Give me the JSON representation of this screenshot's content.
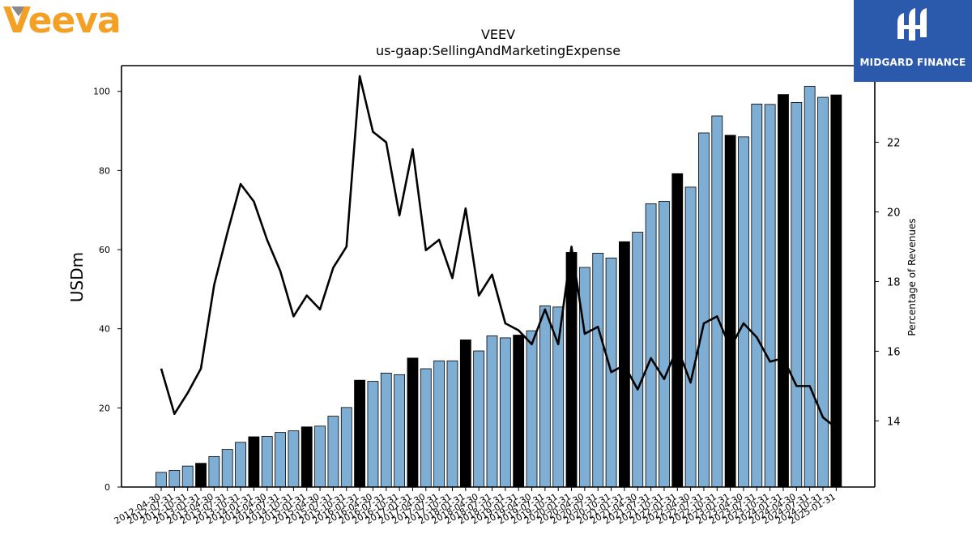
{
  "logos": {
    "company_name": "Veeva",
    "company_color": "#f4a024",
    "brand_name": "MIDGARD FINANCE",
    "brand_bg": "#2b5aad"
  },
  "chart_data": {
    "type": "bar",
    "title": "VEEV",
    "subtitle": "us-gaap:SellingAndMarketingExpense",
    "ylabel": "USDm",
    "y2label": "Percentage of Revenues",
    "ylim": [
      0,
      106.5
    ],
    "y2lim": [
      12.1,
      24.2
    ],
    "yticks": [
      0,
      20,
      40,
      60,
      80,
      100
    ],
    "y2ticks": [
      14,
      16,
      18,
      20,
      22
    ],
    "bar_color": "#7eaed3",
    "highlight_color": "#000000",
    "line_color": "#000000",
    "categories": [
      "2012-04-30",
      "2012-07-31",
      "2012-10-31",
      "2013-01-31",
      "2013-04-30",
      "2013-07-31",
      "2013-10-31",
      "2014-01-31",
      "2014-04-30",
      "2014-07-31",
      "2014-10-31",
      "2015-01-31",
      "2015-04-30",
      "2015-07-31",
      "2015-10-31",
      "2016-01-31",
      "2016-04-30",
      "2016-07-31",
      "2016-10-31",
      "2017-01-31",
      "2017-04-30",
      "2017-07-31",
      "2017-10-31",
      "2018-01-31",
      "2018-04-30",
      "2018-07-31",
      "2018-10-31",
      "2019-01-31",
      "2019-04-30",
      "2019-07-31",
      "2019-10-31",
      "2020-01-31",
      "2020-04-30",
      "2020-07-31",
      "2020-10-31",
      "2021-01-31",
      "2021-04-30",
      "2021-07-31",
      "2021-10-31",
      "2022-01-31",
      "2022-04-30",
      "2022-07-31",
      "2022-10-31",
      "2023-01-31",
      "2023-04-30",
      "2023-07-31",
      "2023-10-31",
      "2024-01-31",
      "2024-04-30",
      "2024-07-31",
      "2024-10-31",
      "2025-01-31"
    ],
    "series": [
      {
        "values": [
          3.7,
          4.2,
          5.3,
          6.0,
          7.7,
          9.5,
          11.3,
          12.7,
          12.8,
          13.8,
          14.2,
          15.2,
          15.4,
          17.9,
          20.1,
          27.0,
          26.7,
          28.8,
          28.4,
          32.6,
          29.9,
          31.9,
          31.9,
          37.2,
          34.4,
          38.2,
          37.7,
          38.4,
          39.5,
          45.8,
          45.5,
          59.3,
          55.5,
          59.1,
          57.9,
          62.0,
          64.4,
          71.6,
          72.2,
          79.2,
          75.8,
          89.5,
          93.8,
          88.9,
          88.5,
          96.8,
          96.7,
          99.2,
          97.2,
          101.3,
          98.5,
          99.1
        ],
        "highlight": [
          false,
          false,
          false,
          true,
          false,
          false,
          false,
          true,
          false,
          false,
          false,
          true,
          false,
          false,
          false,
          true,
          false,
          false,
          false,
          true,
          false,
          false,
          false,
          true,
          false,
          false,
          false,
          true,
          false,
          false,
          false,
          true,
          false,
          false,
          false,
          true,
          false,
          false,
          false,
          true,
          false,
          false,
          false,
          true,
          false,
          false,
          false,
          true,
          false,
          false,
          false,
          true
        ]
      },
      {
        "name": "Percentage of Revenues",
        "values": [
          15.5,
          14.2,
          14.8,
          15.5,
          17.9,
          19.4,
          20.8,
          20.3,
          19.2,
          18.3,
          17.0,
          17.6,
          17.2,
          18.4,
          19.0,
          23.9,
          22.3,
          22.0,
          19.9,
          21.8,
          18.9,
          19.2,
          18.1,
          20.1,
          17.6,
          18.2,
          16.8,
          16.6,
          16.2,
          17.2,
          16.2,
          19.0,
          16.5,
          16.7,
          15.4,
          15.6,
          14.9,
          15.8,
          15.2,
          16.1,
          15.1,
          16.8,
          17.0,
          16.1,
          16.8,
          16.4,
          15.7,
          15.8,
          15.0,
          15.0,
          14.1,
          13.8
        ]
      }
    ]
  }
}
